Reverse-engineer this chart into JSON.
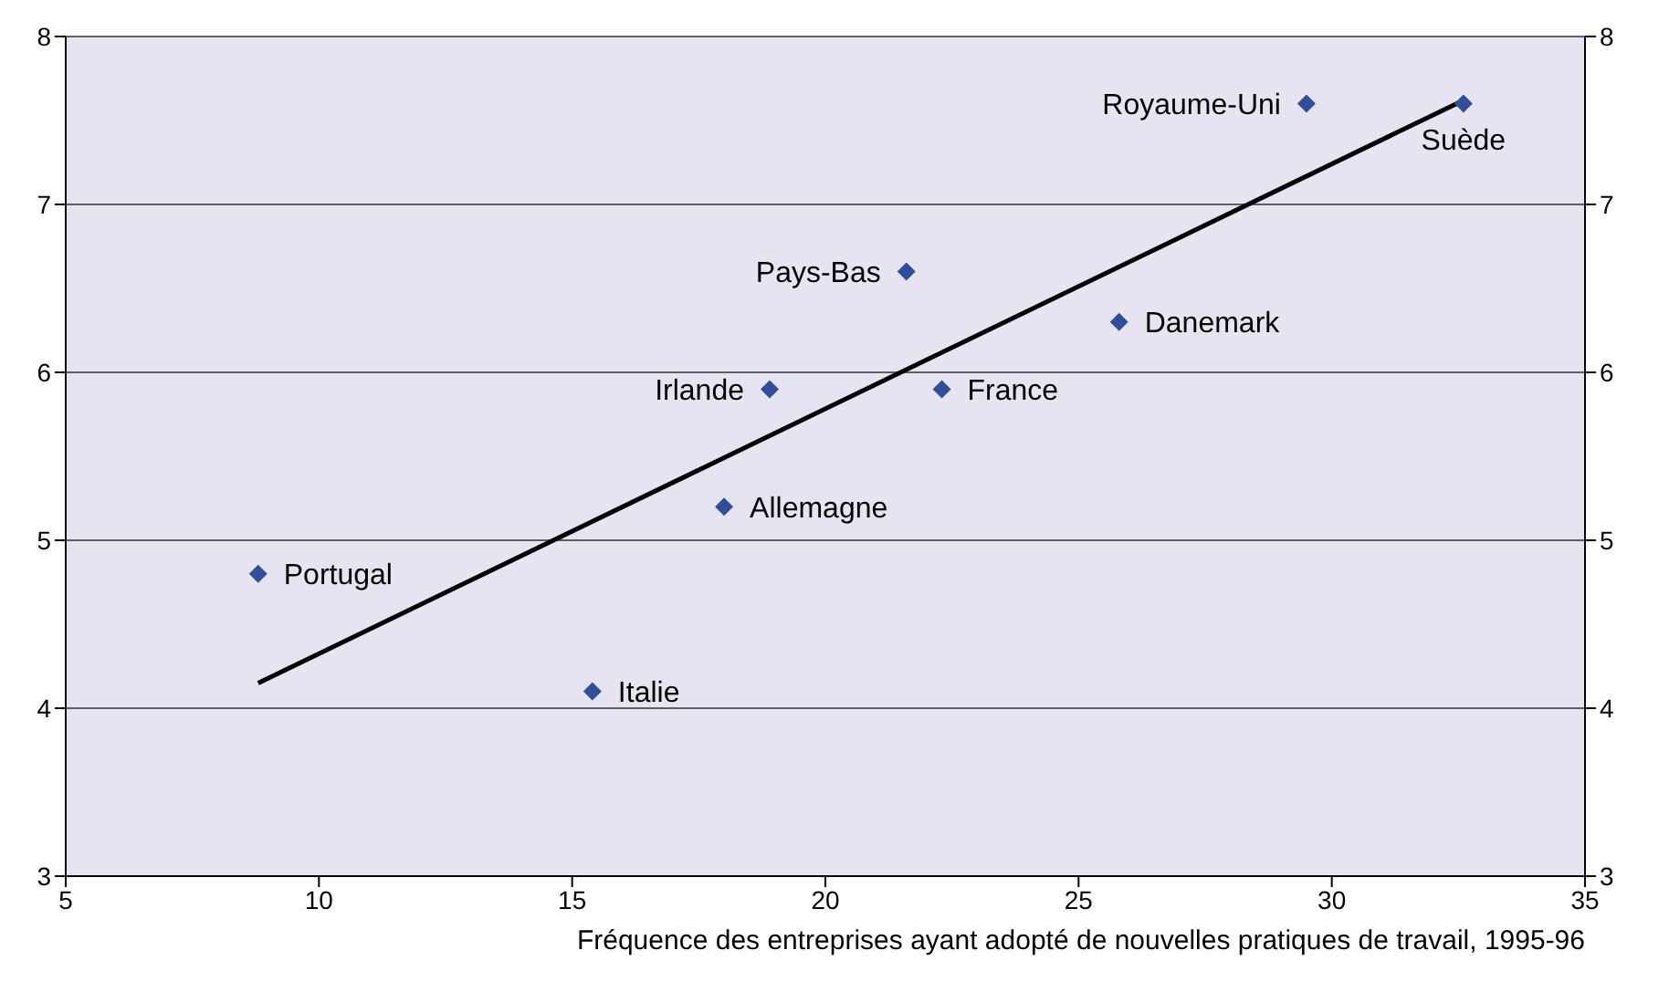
{
  "chart_data": {
    "type": "scatter",
    "xlabel": "Fréquence des entreprises ayant adopté de nouvelles pratiques de travail, 1995-96",
    "xlim": [
      5,
      35
    ],
    "xticks": [
      5,
      10,
      15,
      20,
      25,
      30,
      35
    ],
    "ylim": [
      3,
      8
    ],
    "yticks": [
      3,
      4,
      5,
      6,
      7,
      8
    ],
    "y2lim": [
      3,
      8
    ],
    "y2ticks": [
      3,
      4,
      5,
      6,
      7,
      8
    ],
    "grid": "y",
    "series": [
      {
        "marker": "diamond",
        "color": "#2e4f9e",
        "x": [
          29.5,
          32.6,
          21.6,
          25.8,
          18.9,
          22.3,
          18.0,
          8.8,
          15.4
        ],
        "values": [
          7.6,
          7.6,
          6.6,
          6.3,
          5.9,
          5.9,
          5.2,
          4.8,
          4.1
        ]
      },
      {
        "type": "line",
        "color": "#000000",
        "x": [
          8.8,
          32.6
        ],
        "values": [
          4.15,
          7.62
        ]
      }
    ],
    "annotations": [
      {
        "text": "Royaume-Uni",
        "x": 29.5,
        "y": 7.6
      },
      {
        "text": "Suède",
        "x": 32.6,
        "y": 7.6
      },
      {
        "text": "Pays-Bas",
        "x": 21.6,
        "y": 6.6
      },
      {
        "text": "Danemark",
        "x": 25.8,
        "y": 6.3
      },
      {
        "text": "Irlande",
        "x": 18.9,
        "y": 5.9
      },
      {
        "text": "France",
        "x": 22.3,
        "y": 5.9
      },
      {
        "text": "Allemagne",
        "x": 18.0,
        "y": 5.2
      },
      {
        "text": "Portugal",
        "x": 8.8,
        "y": 4.8
      },
      {
        "text": "Italie",
        "x": 15.4,
        "y": 4.1
      }
    ]
  }
}
